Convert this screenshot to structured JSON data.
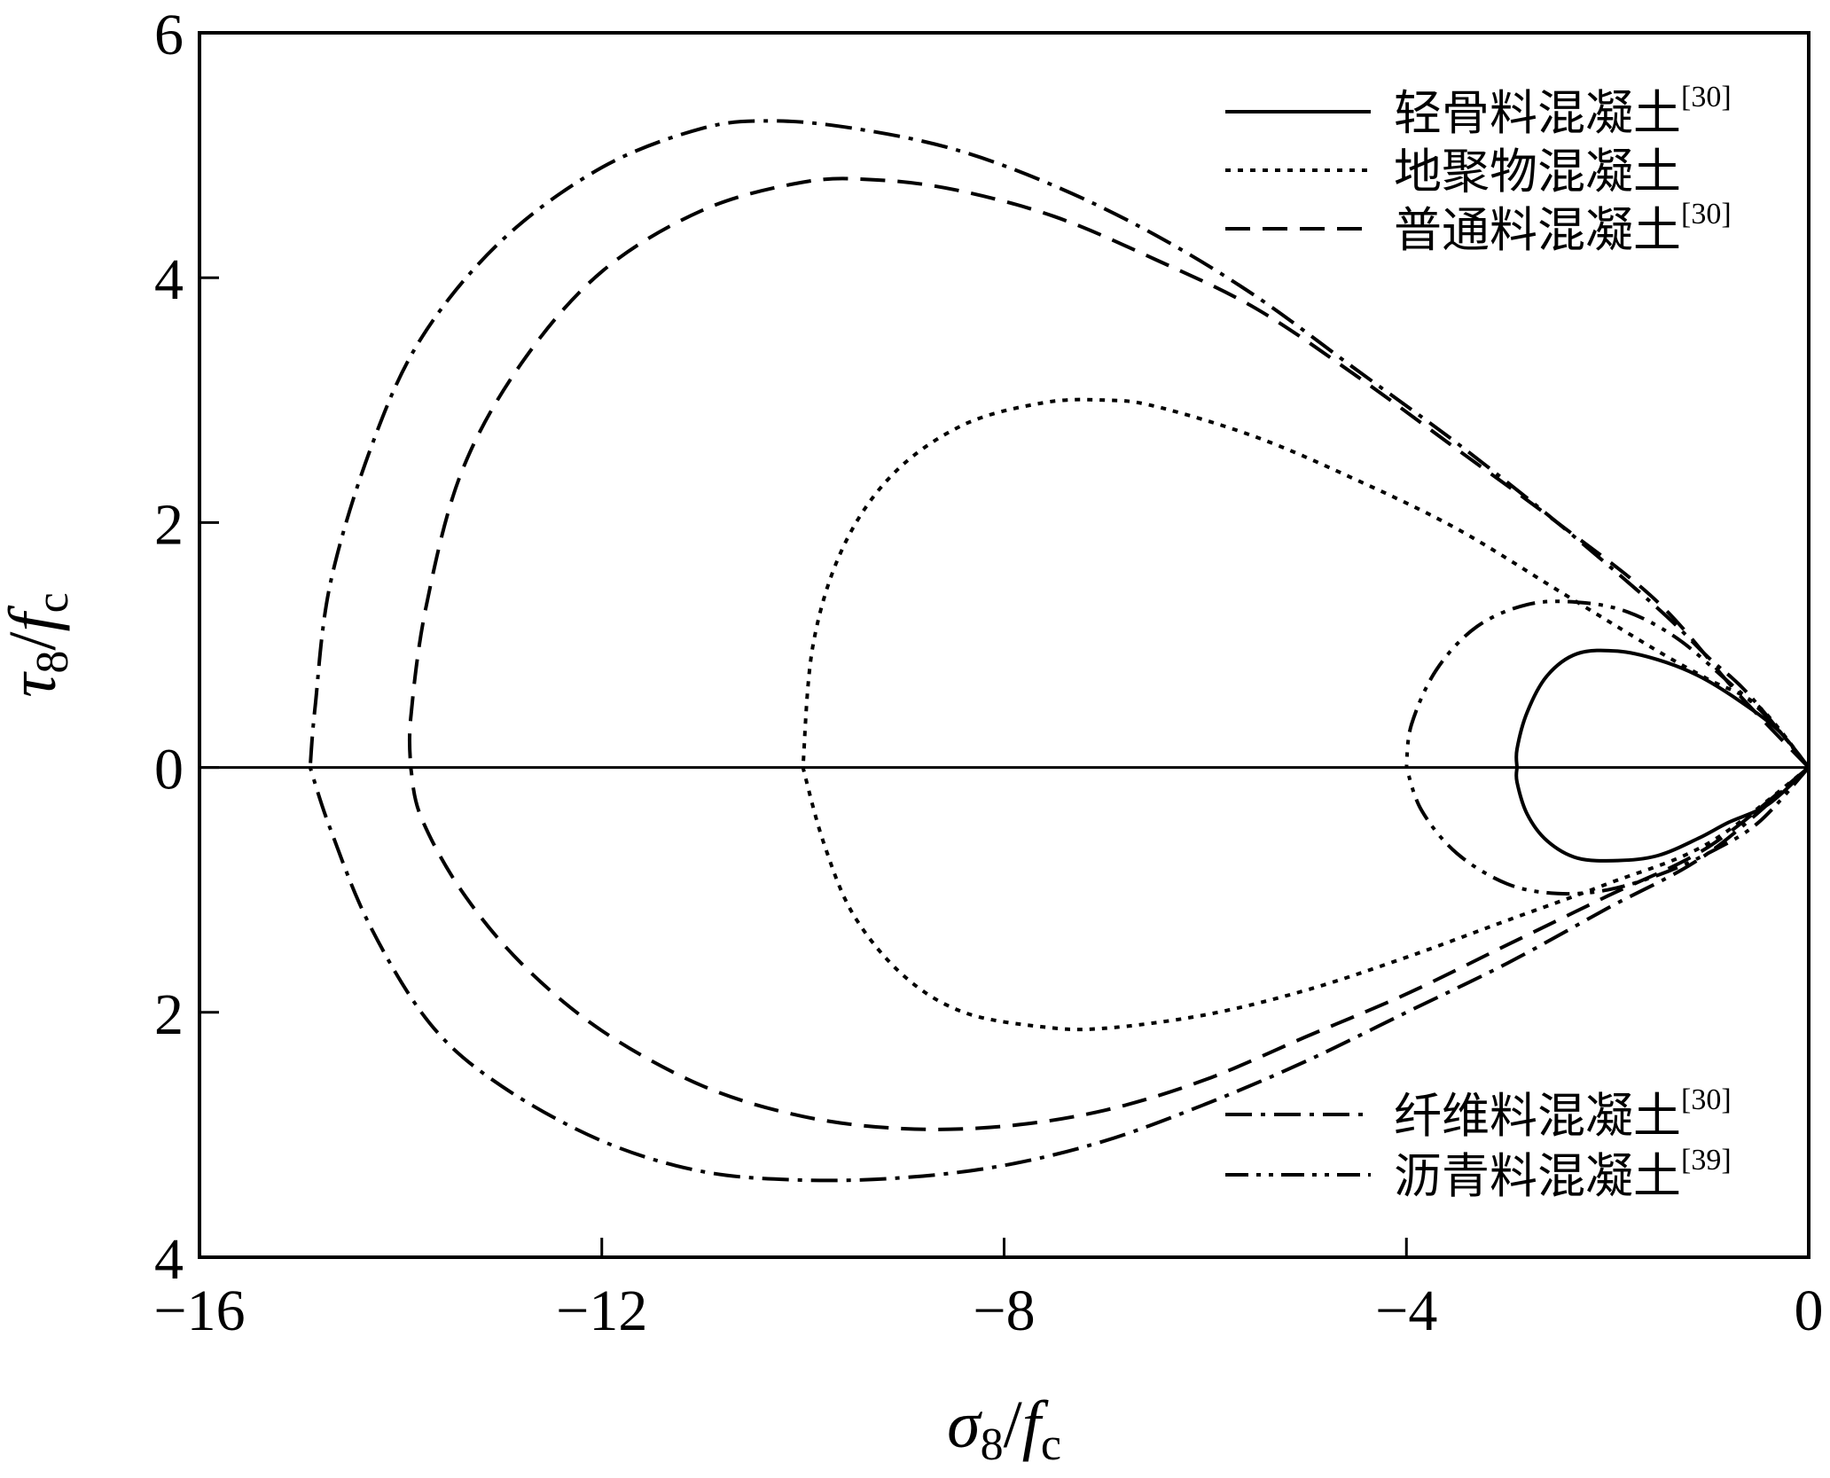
{
  "chart_data": {
    "type": "line",
    "title": "",
    "xlabel": {
      "main": "σ",
      "sub": "8",
      "slash": "/",
      "f": "f",
      "fsub": "c"
    },
    "ylabel": {
      "main": "τ",
      "sub": "8",
      "slash": "/",
      "f": "f",
      "fsub": "c"
    },
    "xlim": [
      -16,
      0
    ],
    "ylim": [
      -4,
      6
    ],
    "x_ticks": [
      {
        "value": -16,
        "label": "−16"
      },
      {
        "value": -12,
        "label": "−12"
      },
      {
        "value": -8,
        "label": "−8"
      },
      {
        "value": -4,
        "label": "−4"
      },
      {
        "value": 0,
        "label": "0"
      }
    ],
    "y_ticks": [
      {
        "value": 6,
        "label": "6"
      },
      {
        "value": 4,
        "label": "4"
      },
      {
        "value": 2,
        "label": "2"
      },
      {
        "value": 0,
        "label": "0"
      },
      {
        "value": -2,
        "label": "2"
      },
      {
        "value": -4,
        "label": "4"
      }
    ],
    "grid": false,
    "zero_line": true,
    "legend_placement": "top-right and bottom-right",
    "series": [
      {
        "name": "轻骨料混凝土",
        "ref": "[30]",
        "style": "solid",
        "legend_group": "top",
        "upper": [
          [
            0,
            0
          ],
          [
            -0.3,
            0.3
          ],
          [
            -0.7,
            0.55
          ],
          [
            -1.1,
            0.75
          ],
          [
            -1.5,
            0.88
          ],
          [
            -1.9,
            0.95
          ],
          [
            -2.3,
            0.93
          ],
          [
            -2.6,
            0.75
          ],
          [
            -2.8,
            0.45
          ],
          [
            -2.9,
            0.15
          ],
          [
            -2.9,
            0
          ]
        ],
        "lower": [
          [
            0,
            0
          ],
          [
            -0.4,
            -0.3
          ],
          [
            -0.8,
            -0.45
          ],
          [
            -1.1,
            -0.58
          ],
          [
            -1.5,
            -0.72
          ],
          [
            -1.9,
            -0.76
          ],
          [
            -2.3,
            -0.74
          ],
          [
            -2.6,
            -0.6
          ],
          [
            -2.8,
            -0.38
          ],
          [
            -2.9,
            -0.12
          ],
          [
            -2.9,
            0
          ]
        ]
      },
      {
        "name": "地聚物混凝土",
        "ref": "",
        "style": "dotted",
        "legend_group": "top",
        "upper": [
          [
            0,
            0
          ],
          [
            -0.5,
            0.5
          ],
          [
            -1.0,
            0.72
          ],
          [
            -1.5,
            0.95
          ],
          [
            -2.5,
            1.45
          ],
          [
            -3.5,
            1.95
          ],
          [
            -4.5,
            2.35
          ],
          [
            -5.5,
            2.7
          ],
          [
            -6.5,
            2.95
          ],
          [
            -7.0,
            3.0
          ],
          [
            -7.6,
            2.98
          ],
          [
            -8.4,
            2.8
          ],
          [
            -9.1,
            2.4
          ],
          [
            -9.6,
            1.8
          ],
          [
            -9.9,
            1.0
          ],
          [
            -10.0,
            0
          ]
        ],
        "lower": [
          [
            0,
            0
          ],
          [
            -1.0,
            -0.62
          ],
          [
            -2.0,
            -0.95
          ],
          [
            -3.0,
            -1.25
          ],
          [
            -4.0,
            -1.55
          ],
          [
            -5.0,
            -1.82
          ],
          [
            -6.0,
            -2.02
          ],
          [
            -7.0,
            -2.13
          ],
          [
            -7.6,
            -2.12
          ],
          [
            -8.4,
            -2.0
          ],
          [
            -9.0,
            -1.7
          ],
          [
            -9.5,
            -1.2
          ],
          [
            -9.8,
            -0.6
          ],
          [
            -10.0,
            0
          ]
        ]
      },
      {
        "name": "普通料混凝土",
        "ref": "[30]",
        "style": "dashed",
        "legend_group": "top",
        "upper": [
          [
            0,
            0
          ],
          [
            -0.7,
            0.6
          ],
          [
            -1.5,
            1.35
          ],
          [
            -2.5,
            2.0
          ],
          [
            -3.5,
            2.6
          ],
          [
            -4.5,
            3.2
          ],
          [
            -5.5,
            3.75
          ],
          [
            -6.5,
            4.15
          ],
          [
            -7.5,
            4.5
          ],
          [
            -8.5,
            4.72
          ],
          [
            -9.3,
            4.8
          ],
          [
            -10.0,
            4.78
          ],
          [
            -11.0,
            4.55
          ],
          [
            -12.0,
            4.05
          ],
          [
            -12.8,
            3.3
          ],
          [
            -13.4,
            2.4
          ],
          [
            -13.75,
            1.3
          ],
          [
            -13.9,
            0.4
          ],
          [
            -13.9,
            0
          ]
        ],
        "lower": [
          [
            0,
            0
          ],
          [
            -1.0,
            -0.65
          ],
          [
            -2.0,
            -1.05
          ],
          [
            -3.0,
            -1.45
          ],
          [
            -4.0,
            -1.85
          ],
          [
            -5.0,
            -2.2
          ],
          [
            -6.0,
            -2.55
          ],
          [
            -7.0,
            -2.8
          ],
          [
            -8.0,
            -2.93
          ],
          [
            -9.0,
            -2.95
          ],
          [
            -10.0,
            -2.85
          ],
          [
            -11.0,
            -2.6
          ],
          [
            -12.0,
            -2.15
          ],
          [
            -12.8,
            -1.6
          ],
          [
            -13.4,
            -1.0
          ],
          [
            -13.8,
            -0.4
          ],
          [
            -13.9,
            0
          ]
        ]
      },
      {
        "name": "纤维料混凝土",
        "ref": "[30]",
        "style": "dashdot",
        "legend_group": "bottom",
        "upper": [
          [
            0,
            0
          ],
          [
            -0.6,
            0.6
          ],
          [
            -1.0,
            0.9
          ],
          [
            -1.5,
            1.3
          ],
          [
            -2.5,
            2.0
          ],
          [
            -3.5,
            2.65
          ],
          [
            -4.5,
            3.25
          ],
          [
            -5.5,
            3.85
          ],
          [
            -6.5,
            4.35
          ],
          [
            -7.5,
            4.75
          ],
          [
            -8.5,
            5.05
          ],
          [
            -9.5,
            5.22
          ],
          [
            -10.3,
            5.28
          ],
          [
            -11.0,
            5.22
          ],
          [
            -12.0,
            4.9
          ],
          [
            -13.0,
            4.3
          ],
          [
            -13.8,
            3.5
          ],
          [
            -14.3,
            2.6
          ],
          [
            -14.7,
            1.5
          ],
          [
            -14.85,
            0.5
          ],
          [
            -14.9,
            0
          ]
        ],
        "lower": [
          [
            0,
            0
          ],
          [
            -1.0,
            -0.7
          ],
          [
            -2.0,
            -1.15
          ],
          [
            -3.0,
            -1.6
          ],
          [
            -4.0,
            -2.0
          ],
          [
            -5.0,
            -2.4
          ],
          [
            -6.0,
            -2.75
          ],
          [
            -7.0,
            -3.05
          ],
          [
            -8.0,
            -3.25
          ],
          [
            -9.0,
            -3.35
          ],
          [
            -10.0,
            -3.37
          ],
          [
            -11.0,
            -3.3
          ],
          [
            -12.0,
            -3.05
          ],
          [
            -13.0,
            -2.6
          ],
          [
            -13.7,
            -2.1
          ],
          [
            -14.3,
            -1.3
          ],
          [
            -14.7,
            -0.5
          ],
          [
            -14.9,
            0
          ]
        ]
      },
      {
        "name": "沥青料混凝土",
        "ref": "[39]",
        "style": "dashdotdot",
        "legend_group": "bottom",
        "upper": [
          [
            0,
            0
          ],
          [
            -0.4,
            0.4
          ],
          [
            -0.8,
            0.7
          ],
          [
            -1.3,
            1.05
          ],
          [
            -1.8,
            1.27
          ],
          [
            -2.3,
            1.35
          ],
          [
            -2.8,
            1.33
          ],
          [
            -3.3,
            1.15
          ],
          [
            -3.7,
            0.8
          ],
          [
            -3.95,
            0.35
          ],
          [
            -4.0,
            0
          ]
        ],
        "lower": [
          [
            0,
            0
          ],
          [
            -0.5,
            -0.45
          ],
          [
            -1.0,
            -0.7
          ],
          [
            -1.5,
            -0.88
          ],
          [
            -2.0,
            -1.0
          ],
          [
            -2.5,
            -1.03
          ],
          [
            -3.0,
            -0.95
          ],
          [
            -3.5,
            -0.7
          ],
          [
            -3.85,
            -0.35
          ],
          [
            -4.0,
            0
          ]
        ]
      }
    ]
  }
}
